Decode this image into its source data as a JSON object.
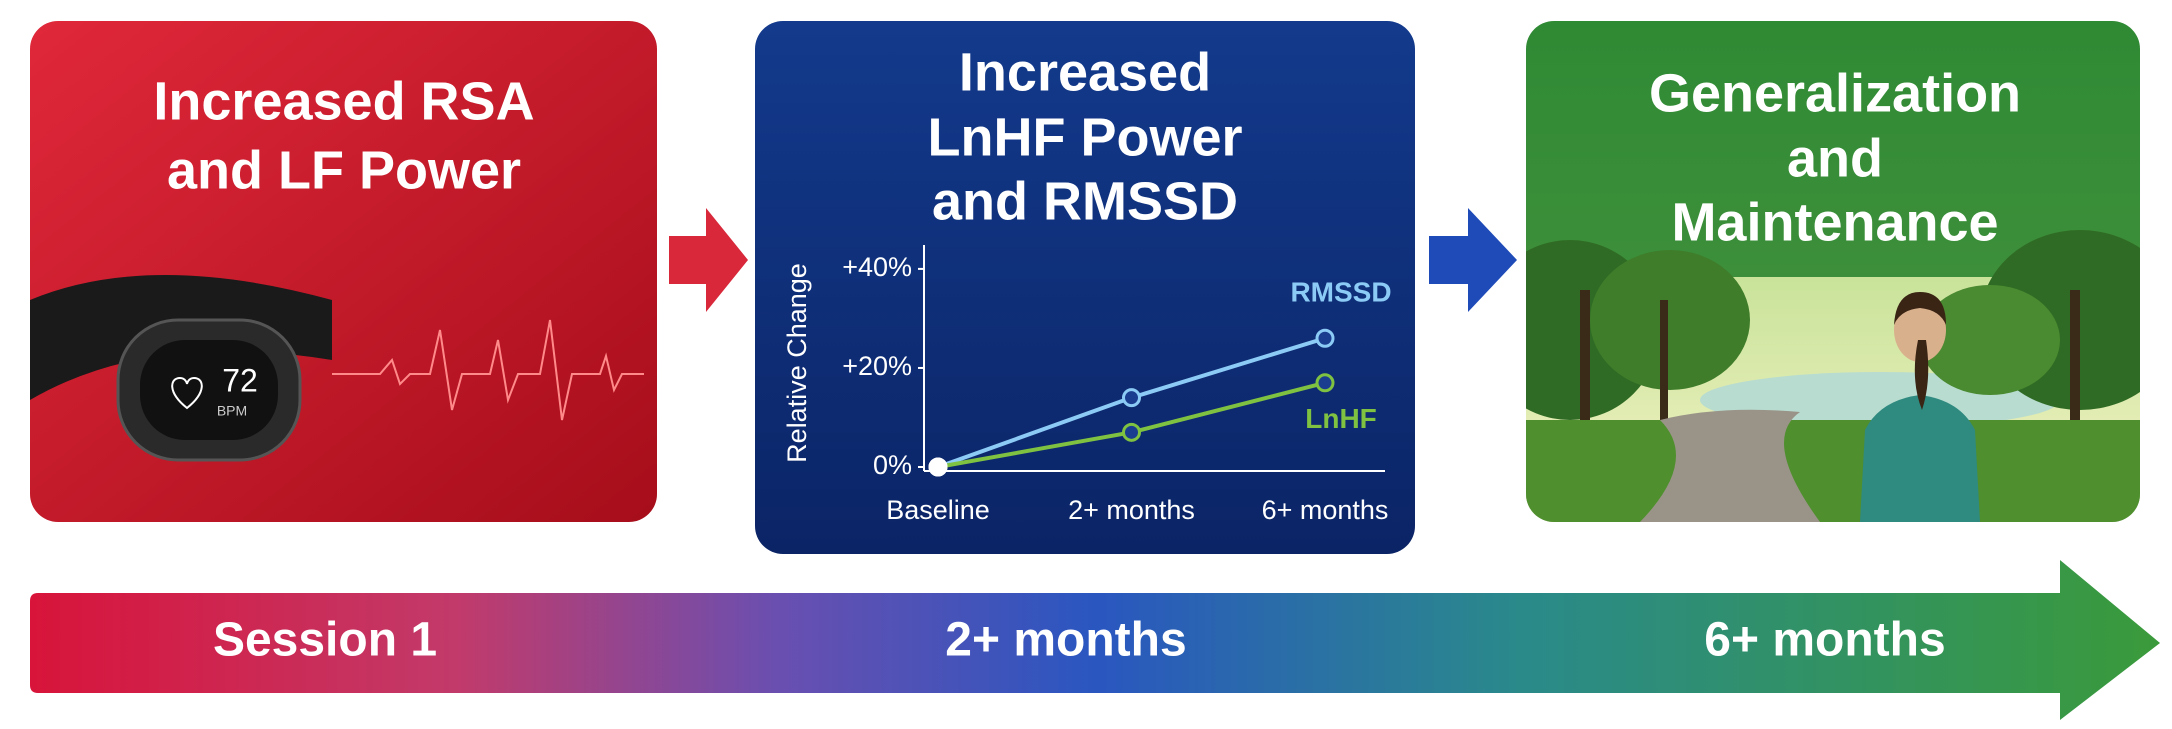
{
  "panels": [
    {
      "title": [
        "Increased RSA",
        "and LF Power"
      ],
      "device": {
        "value": 72,
        "unit": "BPM"
      }
    },
    {
      "title": [
        "Increased",
        "LnHF Power",
        "and RMSSD"
      ],
      "chart_data": {
        "type": "line",
        "y_label": "Relative Change",
        "categories": [
          "Baseline",
          "2+ months",
          "6+ months"
        ],
        "series": [
          {
            "name": "RMSSD",
            "color": "#8ccbf5",
            "values": [
              0,
              14,
              26
            ]
          },
          {
            "name": "LnHF",
            "color": "#7fc241",
            "values": [
              0,
              7,
              17
            ]
          }
        ],
        "ylim": [
          0,
          42
        ],
        "yticks": [
          {
            "value": 0,
            "label": "0%"
          },
          {
            "value": 20,
            "label": "+20%"
          },
          {
            "value": 40,
            "label": "+40%"
          }
        ]
      }
    },
    {
      "title": [
        "Generalization",
        "and",
        "Maintenance"
      ]
    }
  ],
  "timeline": {
    "labels": [
      "Session 1",
      "2+ months",
      "6+ months"
    ]
  }
}
